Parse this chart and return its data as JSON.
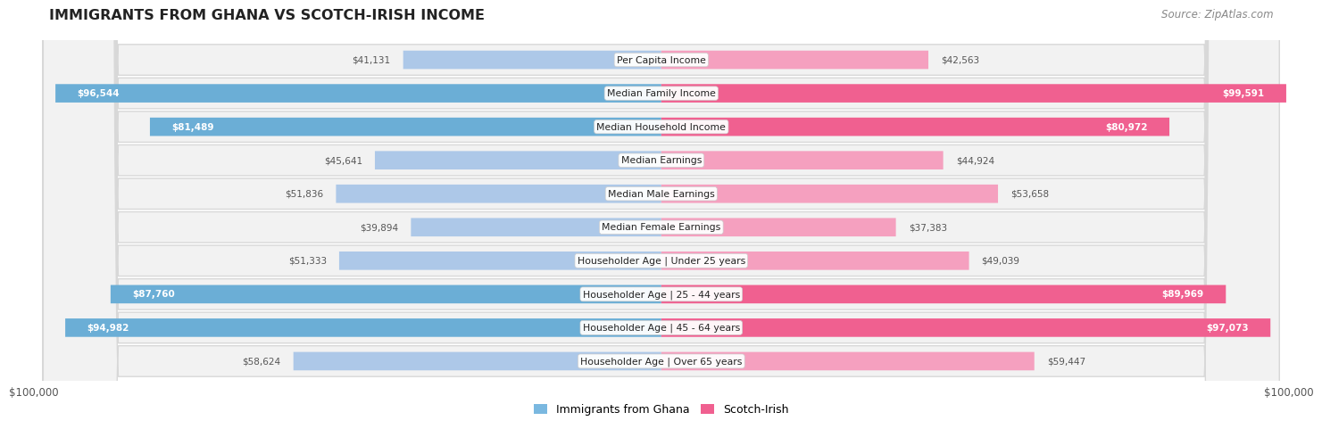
{
  "title": "IMMIGRANTS FROM GHANA VS SCOTCH-IRISH INCOME",
  "source": "Source: ZipAtlas.com",
  "categories": [
    "Per Capita Income",
    "Median Family Income",
    "Median Household Income",
    "Median Earnings",
    "Median Male Earnings",
    "Median Female Earnings",
    "Householder Age | Under 25 years",
    "Householder Age | 25 - 44 years",
    "Householder Age | 45 - 64 years",
    "Householder Age | Over 65 years"
  ],
  "ghana_values": [
    41131,
    96544,
    81489,
    45641,
    51836,
    39894,
    51333,
    87760,
    94982,
    58624
  ],
  "scotch_values": [
    42563,
    99591,
    80972,
    44924,
    53658,
    37383,
    49039,
    89969,
    97073,
    59447
  ],
  "ghana_labels": [
    "$41,131",
    "$96,544",
    "$81,489",
    "$45,641",
    "$51,836",
    "$39,894",
    "$51,333",
    "$87,760",
    "$94,982",
    "$58,624"
  ],
  "scotch_labels": [
    "$42,563",
    "$99,591",
    "$80,972",
    "$44,924",
    "$53,658",
    "$37,383",
    "$49,039",
    "$89,969",
    "$97,073",
    "$59,447"
  ],
  "max_value": 100000,
  "ghana_bar_light": "#adc8e8",
  "ghana_bar_dark": "#6baed6",
  "scotch_bar_light": "#f5a0bf",
  "scotch_bar_dark": "#f06090",
  "row_bg": "#f2f2f2",
  "row_border": "#d8d8d8",
  "label_outside_color": "#555555",
  "label_inside_color": "#ffffff",
  "label_inside_threshold": 65000,
  "legend_ghana": "Immigrants from Ghana",
  "legend_scotch": "Scotch-Irish",
  "legend_ghana_color": "#7ab8e0",
  "legend_scotch_color": "#f06090",
  "bg_color": "#ffffff"
}
